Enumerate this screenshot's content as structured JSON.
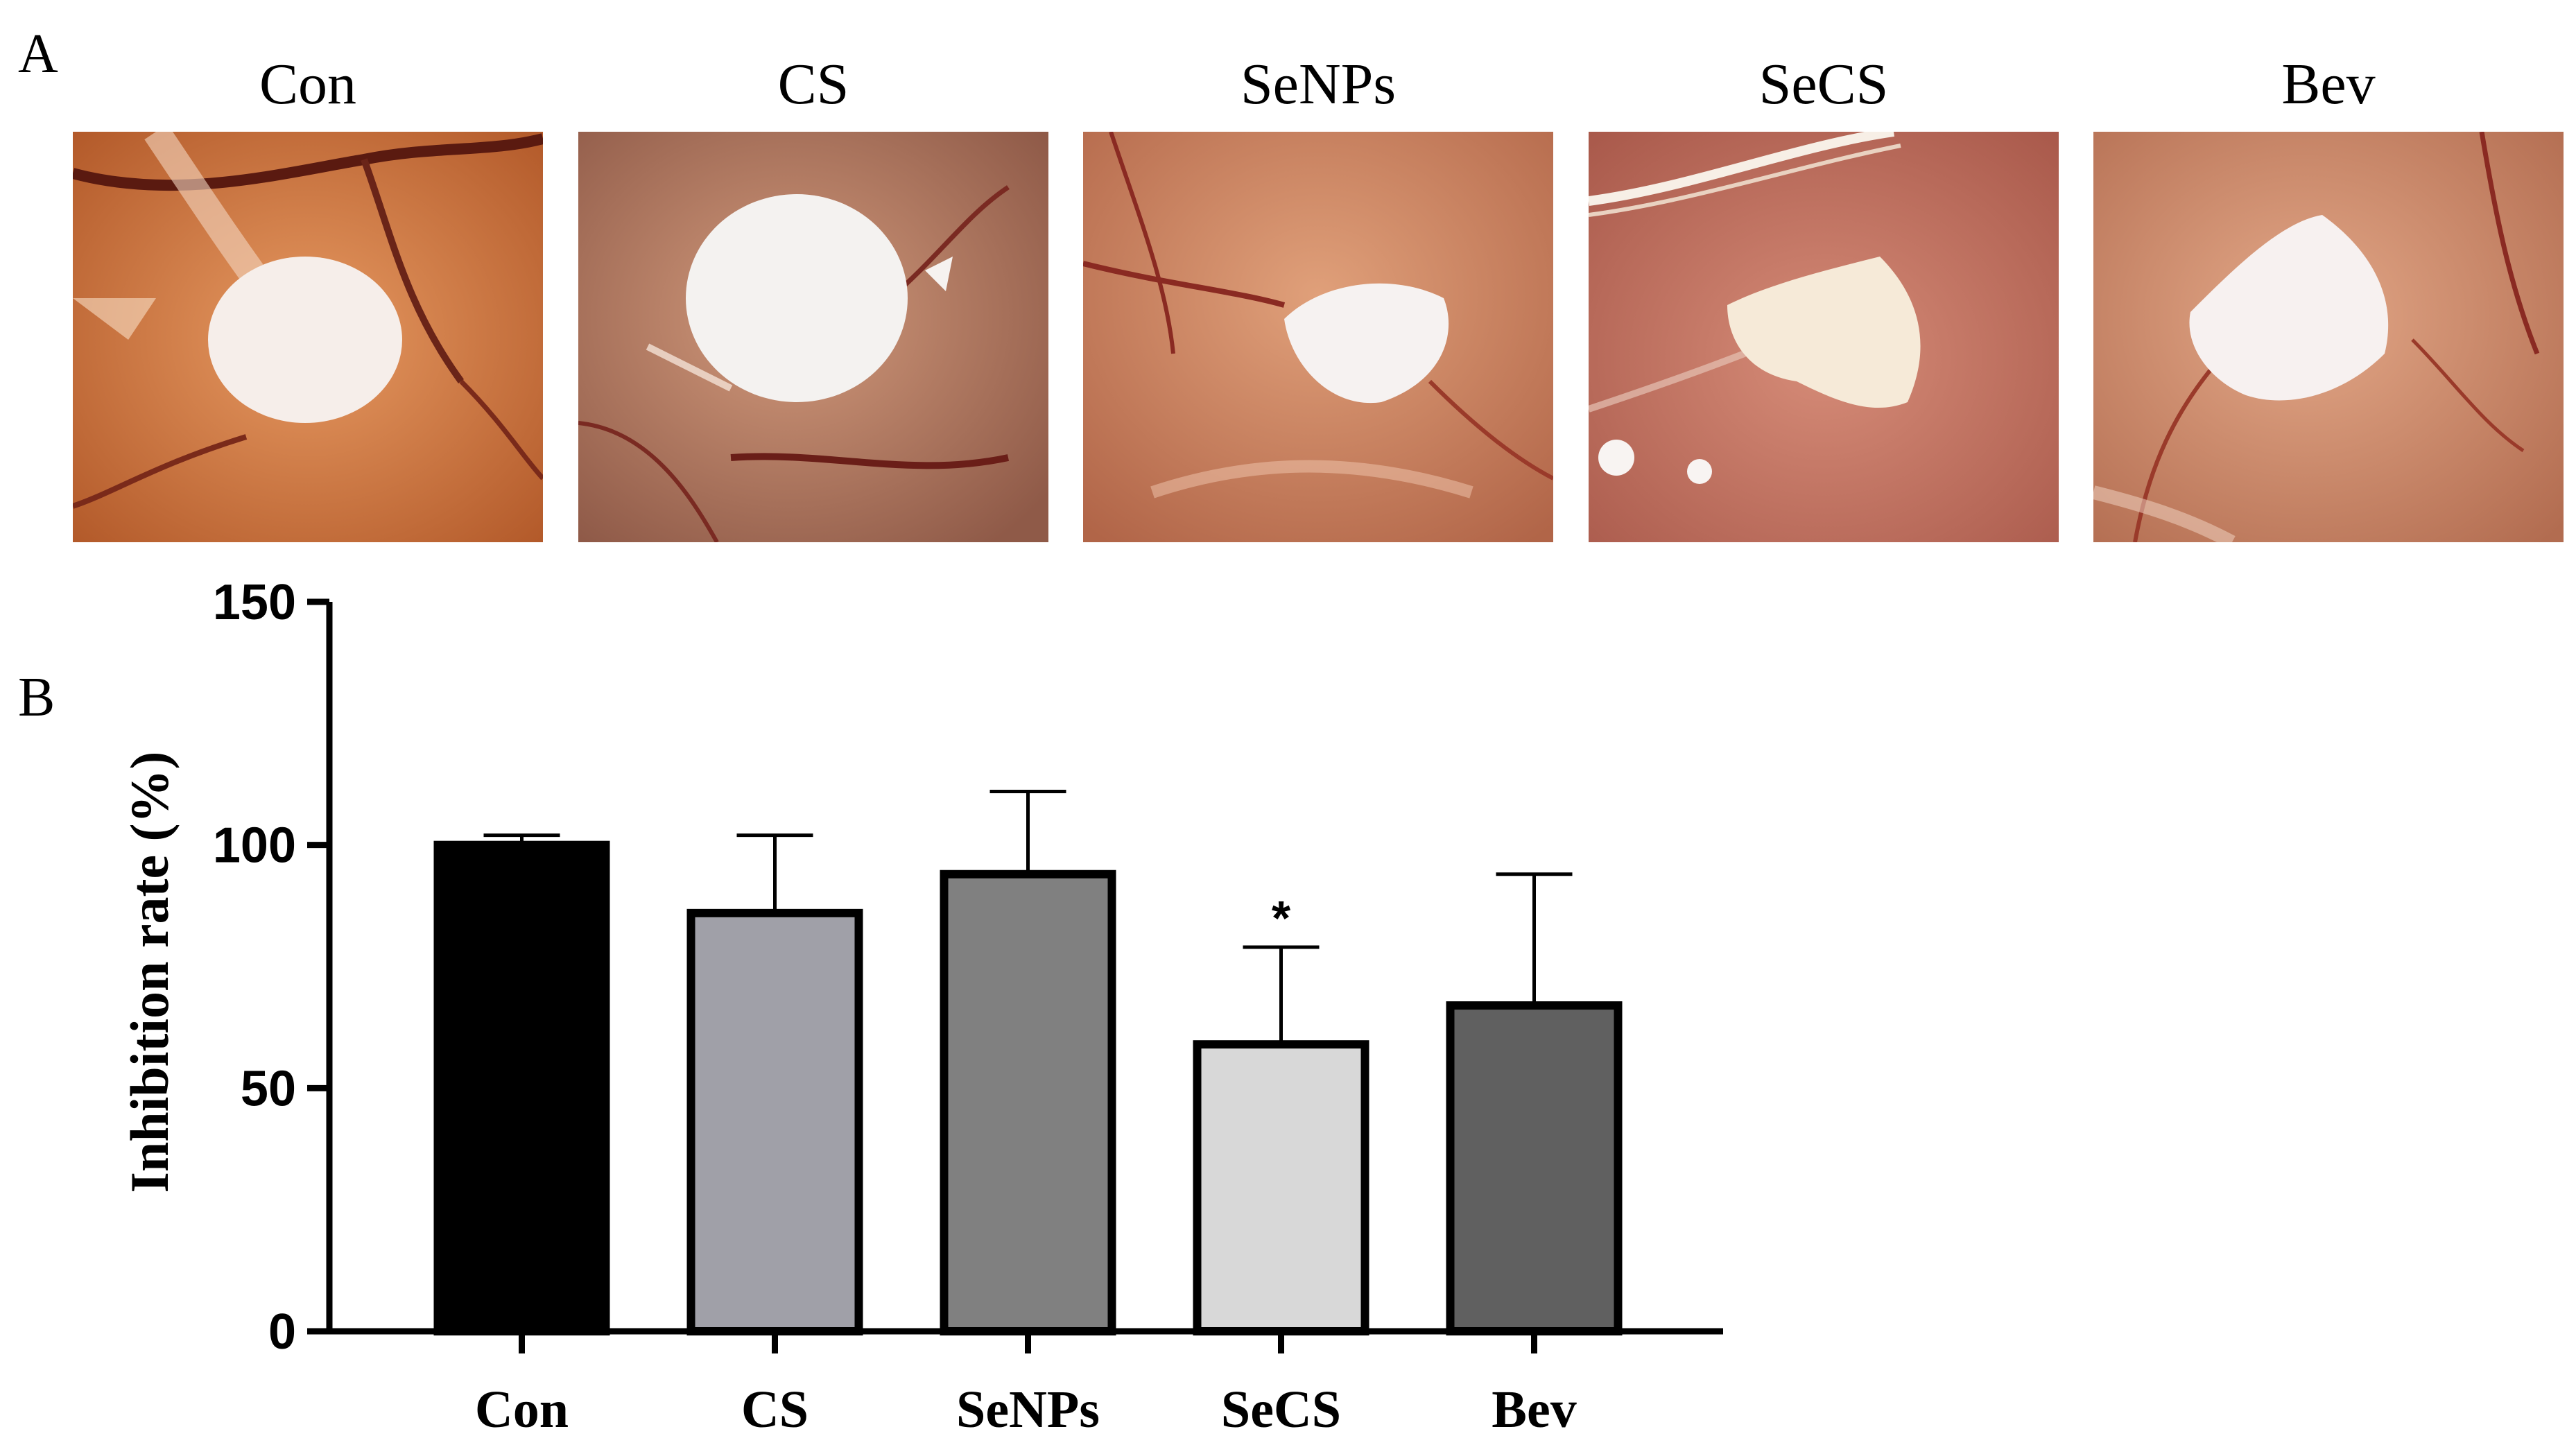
{
  "panels": {
    "a_letter": "A",
    "b_letter": "B"
  },
  "photos": [
    {
      "title": "Con"
    },
    {
      "title": "CS"
    },
    {
      "title": "SeNPs"
    },
    {
      "title": "SeCS"
    },
    {
      "title": "Bev"
    }
  ],
  "chart_data": {
    "type": "bar",
    "title": "",
    "xlabel": "",
    "ylabel": "Inhibition rate (%)",
    "categories": [
      "Con",
      "CS",
      "SeNPs",
      "SeCS",
      "Bev"
    ],
    "values": [
      100,
      86,
      94,
      59,
      67
    ],
    "error_upper": [
      2,
      16,
      17,
      20,
      27
    ],
    "fill_colors": [
      "#000000",
      "#a0a0a8",
      "#808080",
      "#d8d8d8",
      "#606060"
    ],
    "annotations": [
      "",
      "",
      "",
      "*",
      ""
    ],
    "ylim": [
      0,
      150
    ],
    "yticks": [
      0,
      50,
      100,
      150
    ],
    "grid": false,
    "legend": "none"
  }
}
